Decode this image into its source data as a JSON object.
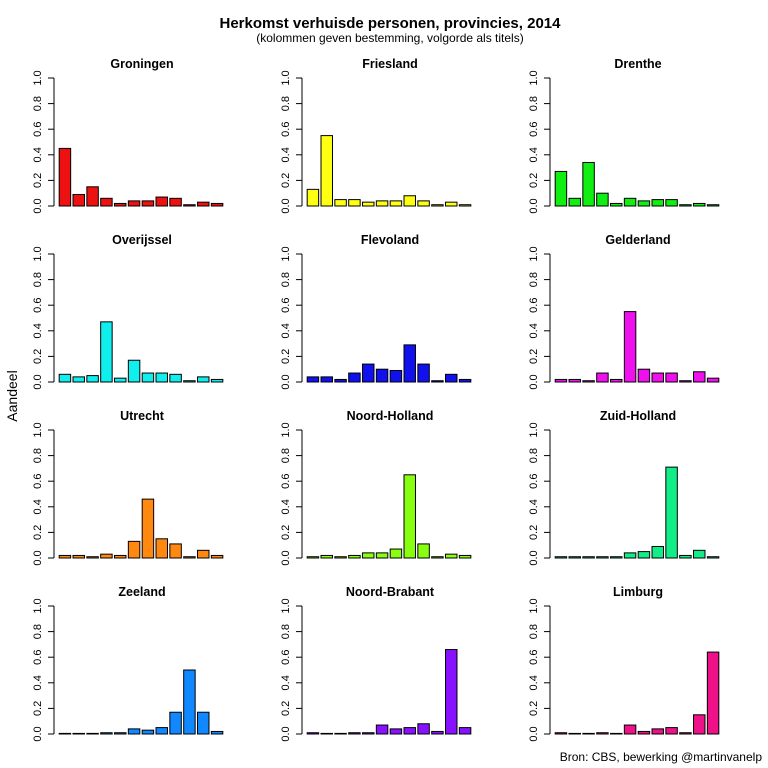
{
  "title": "Herkomst verhuisde personen, provincies, 2014",
  "subtitle": "(kolommen geven bestemming, volgorde als titels)",
  "ylabel": "Aandeel",
  "source": "Bron: CBS, bewerking @martinvanelp",
  "chart_data": {
    "type": "bar",
    "layout": "small-multiples 4x3",
    "categories": [
      "Groningen",
      "Friesland",
      "Drenthe",
      "Overijssel",
      "Flevoland",
      "Gelderland",
      "Utrecht",
      "Noord-Holland",
      "Zuid-Holland",
      "Zeeland",
      "Noord-Brabant",
      "Limburg"
    ],
    "ylim": [
      0,
      1.0
    ],
    "yticks": [
      "0.0",
      "0.2",
      "0.4",
      "0.6",
      "0.8",
      "1.0"
    ],
    "panels": [
      {
        "title": "Groningen",
        "color": "#ee1111",
        "values": [
          0.45,
          0.09,
          0.15,
          0.06,
          0.02,
          0.04,
          0.04,
          0.07,
          0.06,
          0.01,
          0.03,
          0.02
        ]
      },
      {
        "title": "Friesland",
        "color": "#ffff11",
        "values": [
          0.13,
          0.55,
          0.05,
          0.05,
          0.03,
          0.04,
          0.04,
          0.08,
          0.04,
          0.01,
          0.03,
          0.01
        ]
      },
      {
        "title": "Drenthe",
        "color": "#11ee11",
        "values": [
          0.27,
          0.06,
          0.34,
          0.1,
          0.02,
          0.06,
          0.04,
          0.05,
          0.05,
          0.01,
          0.02,
          0.01
        ]
      },
      {
        "title": "Overijssel",
        "color": "#11eeee",
        "values": [
          0.06,
          0.04,
          0.05,
          0.47,
          0.03,
          0.17,
          0.07,
          0.07,
          0.06,
          0.01,
          0.04,
          0.02
        ]
      },
      {
        "title": "Flevoland",
        "color": "#1111ee",
        "values": [
          0.04,
          0.04,
          0.02,
          0.07,
          0.14,
          0.1,
          0.09,
          0.29,
          0.14,
          0.01,
          0.06,
          0.02
        ]
      },
      {
        "title": "Gelderland",
        "color": "#ee11ee",
        "values": [
          0.02,
          0.02,
          0.01,
          0.07,
          0.02,
          0.55,
          0.1,
          0.07,
          0.07,
          0.01,
          0.08,
          0.03
        ]
      },
      {
        "title": "Utrecht",
        "color": "#ff8811",
        "values": [
          0.02,
          0.02,
          0.01,
          0.03,
          0.02,
          0.13,
          0.46,
          0.15,
          0.11,
          0.01,
          0.06,
          0.02
        ]
      },
      {
        "title": "Noord-Holland",
        "color": "#88ff11",
        "values": [
          0.01,
          0.02,
          0.01,
          0.02,
          0.04,
          0.04,
          0.07,
          0.65,
          0.11,
          0.01,
          0.03,
          0.02
        ]
      },
      {
        "title": "Zuid-Holland",
        "color": "#11ee88",
        "values": [
          0.01,
          0.01,
          0.01,
          0.01,
          0.01,
          0.04,
          0.05,
          0.09,
          0.71,
          0.02,
          0.06,
          0.01
        ]
      },
      {
        "title": "Zeeland",
        "color": "#1188ff",
        "values": [
          0.0,
          0.0,
          0.0,
          0.01,
          0.01,
          0.04,
          0.03,
          0.05,
          0.17,
          0.5,
          0.17,
          0.02
        ]
      },
      {
        "title": "Noord-Brabant",
        "color": "#8811ff",
        "values": [
          0.01,
          0.0,
          0.0,
          0.01,
          0.01,
          0.07,
          0.04,
          0.05,
          0.08,
          0.02,
          0.66,
          0.05
        ]
      },
      {
        "title": "Limburg",
        "color": "#ee1188",
        "values": [
          0.01,
          0.0,
          0.0,
          0.01,
          0.0,
          0.07,
          0.02,
          0.04,
          0.05,
          0.01,
          0.15,
          0.64
        ]
      }
    ]
  }
}
